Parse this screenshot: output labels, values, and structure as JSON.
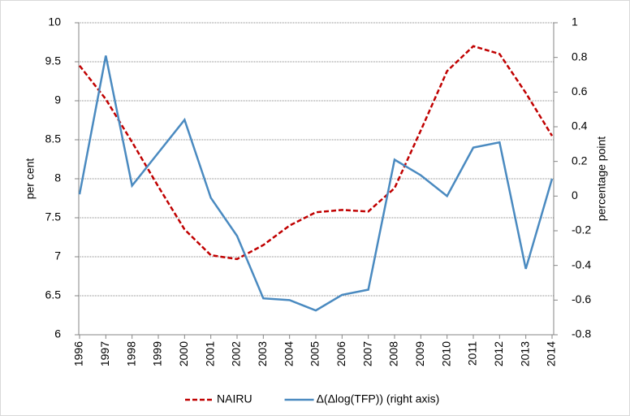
{
  "chart_data": {
    "type": "line",
    "categories": [
      "1996",
      "1997",
      "1998",
      "1999",
      "2000",
      "2001",
      "2002",
      "2003",
      "2004",
      "2005",
      "2006",
      "2007",
      "2008",
      "2009",
      "2010",
      "2011",
      "2012",
      "2013",
      "2014"
    ],
    "series": [
      {
        "name": "NAIRU",
        "color": "#c00000",
        "dash": true,
        "values": [
          9.45,
          9.02,
          8.47,
          7.9,
          7.35,
          7.02,
          6.97,
          7.15,
          7.4,
          7.57,
          7.6,
          7.58,
          7.88,
          8.62,
          9.38,
          9.7,
          9.6,
          9.1,
          8.55
        ]
      },
      {
        "name": "Δ(Δlog(TFP)) (right axis)",
        "color": "#4a8ac0",
        "axis": "y2",
        "dash": false,
        "values": [
          0.01,
          0.81,
          0.06,
          0.25,
          0.44,
          -0.01,
          -0.23,
          -0.59,
          -0.6,
          -0.66,
          -0.57,
          -0.54,
          0.21,
          0.12,
          0,
          0.28,
          0.31,
          -0.42,
          0.1
        ]
      }
    ],
    "ylabel": "per cent",
    "y2label": "percentage point",
    "ylim": [
      6,
      10
    ],
    "yticks": [
      6,
      6.5,
      7,
      7.5,
      8,
      8.5,
      9,
      9.5,
      10
    ],
    "y2lim": [
      -0.8,
      1
    ],
    "y2ticks": [
      -0.8,
      -0.6,
      -0.4,
      -0.2,
      0,
      0.2,
      0.4,
      0.6,
      0.8,
      1
    ],
    "grid": true,
    "legend": "bottom"
  }
}
